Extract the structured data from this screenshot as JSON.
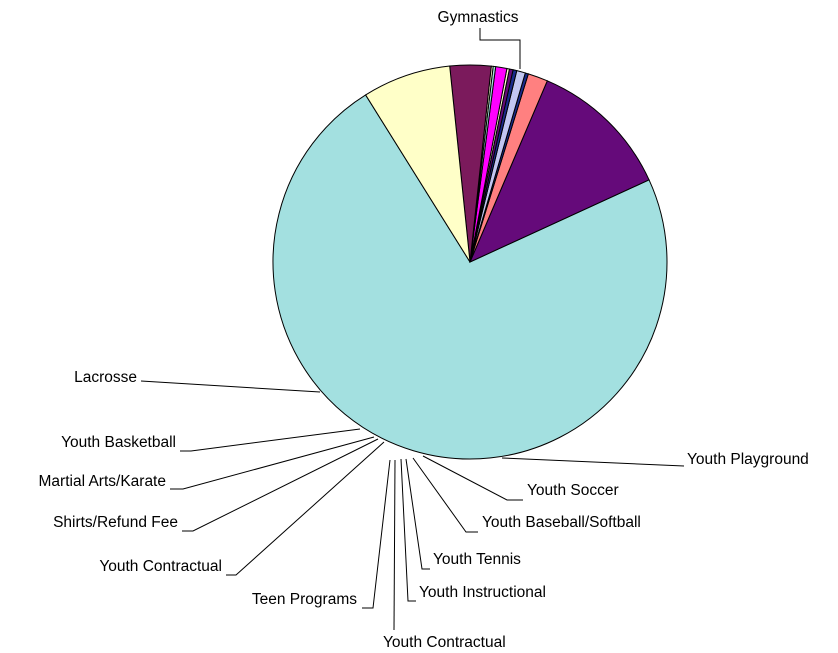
{
  "chart_data": {
    "type": "pie",
    "title": "",
    "legend": "none",
    "slices": [
      {
        "label": "Gymnastics",
        "value": 71.5,
        "color": "#a3e0e0"
      },
      {
        "label": "Youth Playground",
        "value": 11.5,
        "color": "#650a7a"
      },
      {
        "label": "Youth Soccer",
        "value": 1.6,
        "color": "#ff8080"
      },
      {
        "label": "Youth Baseball/Softball",
        "value": 0.25,
        "color": "#1a2a8c"
      },
      {
        "label": "Youth Tennis",
        "value": 0.7,
        "color": "#c2c6f2"
      },
      {
        "label": "Youth Instructional",
        "value": 0.3,
        "color": "#1a2a8c"
      },
      {
        "label": "Youth Contractual",
        "value": 0.3,
        "color": "#650a7a"
      },
      {
        "label": "Teen Programs",
        "value": 0.2,
        "color": "#ffffd0"
      },
      {
        "label": "Youth Contractual",
        "value": 0.9,
        "color": "#ff00ff"
      },
      {
        "label": "Shirts/Refund Fee",
        "value": 0.2,
        "color": "#a3e0e0"
      },
      {
        "label": "Martial Arts/Karate",
        "value": 0.15,
        "color": "#ffffd0"
      },
      {
        "label": "Youth Basketball",
        "value": 3.3,
        "color": "#7b1a5c"
      },
      {
        "label": "Lacrosse",
        "value": 7.1,
        "color": "#ffffc8"
      }
    ]
  }
}
